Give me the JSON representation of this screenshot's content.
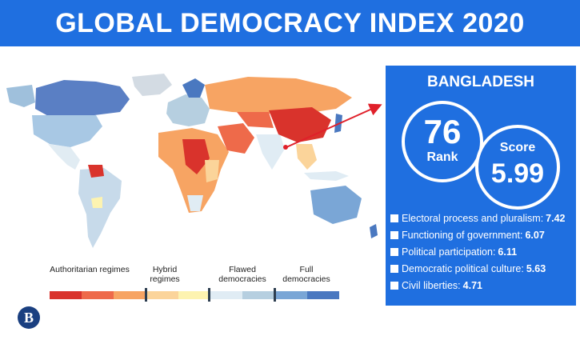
{
  "header": {
    "title": "GLOBAL DEMOCRACY INDEX 2020"
  },
  "panel": {
    "country": "BANGLADESH",
    "rank_value": "76",
    "rank_label": "Rank",
    "score_label": "Score",
    "score_value": "5.99",
    "metrics": [
      {
        "label": "Electoral process and pluralism:",
        "value": "7.42"
      },
      {
        "label": "Functioning of government:",
        "value": "6.07"
      },
      {
        "label": "Political participation:",
        "value": "6.11"
      },
      {
        "label": "Democratic political culture:",
        "value": "5.63"
      },
      {
        "label": "Civil liberties:",
        "value": "4.71"
      }
    ]
  },
  "legend": {
    "labels": [
      "Authoritarian regimes",
      "Hybrid regimes",
      "Flawed democracies",
      "Full democracies"
    ],
    "colors": [
      "#d9332c",
      "#ee6a4a",
      "#f7a463",
      "#fbd49a",
      "#fdf3b0",
      "#e0ecf4",
      "#b6cfe0",
      "#7aa6d6",
      "#4a78c0"
    ]
  },
  "logo": {
    "glyph": "B"
  },
  "colors": {
    "accent": "#1f6fe0",
    "arrow": "#e0202a"
  }
}
